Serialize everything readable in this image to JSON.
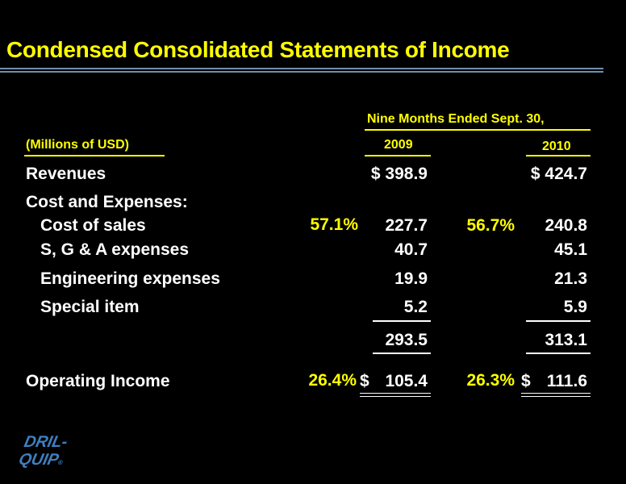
{
  "title": "Condensed Consolidated Statements of Income",
  "header": {
    "period": "Nine Months Ended Sept. 30,",
    "units": "(Millions of USD)",
    "year1": "2009",
    "year2": "2010"
  },
  "rows": {
    "revenues": {
      "label": "Revenues",
      "v2009": "$ 398.9",
      "v2010": "$ 424.7"
    },
    "cost_and_expenses": {
      "label": "Cost and Expenses:"
    },
    "cost_of_sales": {
      "label": "Cost of sales",
      "pct2009": "57.1%",
      "v2009": "227.7",
      "pct2010": "56.7%",
      "v2010": "240.8"
    },
    "sga": {
      "label": "S, G & A expenses",
      "v2009": "40.7",
      "v2010": "45.1"
    },
    "engineering": {
      "label": "Engineering expenses",
      "v2009": "19.9",
      "v2010": "21.3"
    },
    "special": {
      "label": "Special item",
      "v2009": "5.2",
      "v2010": "5.9"
    },
    "total": {
      "v2009": "293.5",
      "v2010": "313.1"
    },
    "operating_income": {
      "label": "Operating Income",
      "pct2009": "26.4%",
      "cur2009": "$",
      "v2009": "105.4",
      "pct2010": "26.3%",
      "cur2010": "$",
      "v2010": "111.6"
    }
  },
  "logo": {
    "line1": "DRIL-",
    "line2": "QUIP",
    "mark": "®"
  },
  "colors": {
    "background": "#000000",
    "accent": "#ffff00",
    "text": "#ffffff",
    "title_rule": "#6f8fb0"
  }
}
